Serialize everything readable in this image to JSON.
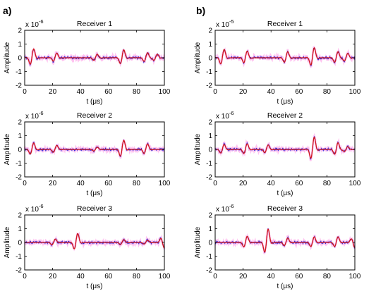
{
  "panel_labels": [
    "a)",
    "b)"
  ],
  "colors": {
    "measured": "#2b2bd6",
    "fit": "#d11a1a",
    "envelope": "#ff77dd",
    "axes": "#000000"
  },
  "chart_data": [
    {
      "type": "line",
      "panel": "a)",
      "title": "Receiver 1",
      "xlabel": "t (μs)",
      "ylabel": "Amplitude",
      "multiplier": "x 10",
      "multiplier_exp": "-6",
      "xlim": [
        0,
        100
      ],
      "ylim": [
        -2,
        2
      ],
      "xticks": [
        0,
        20,
        40,
        60,
        80,
        100
      ],
      "yticks": [
        -2,
        -1,
        0,
        1,
        2
      ],
      "pulses": [
        {
          "t": 5.5,
          "a": 0.8
        },
        {
          "t": 22,
          "a": 0.42
        },
        {
          "t": 51,
          "a": 0.32
        },
        {
          "t": 70,
          "a": 0.72
        },
        {
          "t": 87,
          "a": 0.45
        },
        {
          "t": 94,
          "a": 0.32
        }
      ]
    },
    {
      "type": "line",
      "panel": "b)",
      "title": "Receiver 1",
      "xlabel": "t (μs)",
      "ylabel": "Amplitude",
      "multiplier": "x 10",
      "multiplier_exp": "-5",
      "xlim": [
        0,
        100
      ],
      "ylim": [
        -2,
        2
      ],
      "xticks": [
        0,
        20,
        40,
        60,
        80,
        100
      ],
      "yticks": [
        -2,
        -1,
        0,
        1,
        2
      ],
      "pulses": [
        {
          "t": 5.5,
          "a": 0.75
        },
        {
          "t": 22,
          "a": 0.6
        },
        {
          "t": 51,
          "a": 0.55
        },
        {
          "t": 70,
          "a": 0.9
        },
        {
          "t": 87,
          "a": 0.55
        },
        {
          "t": 94,
          "a": 0.4
        }
      ]
    },
    {
      "type": "line",
      "panel": "a)",
      "title": "Receiver 2",
      "xlabel": "t (μs)",
      "ylabel": "Amplitude",
      "multiplier": "x 10",
      "multiplier_exp": "-6",
      "xlim": [
        0,
        100
      ],
      "ylim": [
        -2,
        2
      ],
      "xticks": [
        0,
        20,
        40,
        60,
        80,
        100
      ],
      "yticks": [
        -2,
        -1,
        0,
        1,
        2
      ],
      "pulses": [
        {
          "t": 5.5,
          "a": 0.58
        },
        {
          "t": 22,
          "a": 0.36
        },
        {
          "t": 51,
          "a": 0.2
        },
        {
          "t": 70,
          "a": 0.82
        },
        {
          "t": 87,
          "a": 0.5
        }
      ]
    },
    {
      "type": "line",
      "panel": "b)",
      "title": "Receiver 2",
      "xlabel": "t (μs)",
      "ylabel": "Amplitude",
      "multiplier": "x 10",
      "multiplier_exp": "-6",
      "xlim": [
        0,
        100
      ],
      "ylim": [
        -2,
        2
      ],
      "xticks": [
        0,
        20,
        40,
        60,
        80,
        100
      ],
      "yticks": [
        -2,
        -1,
        0,
        1,
        2
      ],
      "pulses": [
        {
          "t": 5.5,
          "a": 0.45
        },
        {
          "t": 22,
          "a": 0.5
        },
        {
          "t": 37,
          "a": 0.4
        },
        {
          "t": 70,
          "a": 1.1
        },
        {
          "t": 87,
          "a": 0.6
        },
        {
          "t": 94,
          "a": 0.25
        }
      ]
    },
    {
      "type": "line",
      "panel": "a)",
      "title": "Receiver 3",
      "xlabel": "t (μs)",
      "ylabel": "Amplitude",
      "multiplier": "x 10",
      "multiplier_exp": "-6",
      "xlim": [
        0,
        100
      ],
      "ylim": [
        -2,
        2
      ],
      "xticks": [
        0,
        20,
        40,
        60,
        80,
        100
      ],
      "yticks": [
        -2,
        -1,
        0,
        1,
        2
      ],
      "pulses": [
        {
          "t": 21,
          "a": 0.3
        },
        {
          "t": 37,
          "a": 0.8
        },
        {
          "t": 70,
          "a": 0.25
        },
        {
          "t": 87,
          "a": 0.2
        },
        {
          "t": 99,
          "a": -0.5
        }
      ]
    },
    {
      "type": "line",
      "panel": "b)",
      "title": "Receiver 3",
      "xlabel": "t (μs)",
      "ylabel": "Amplitude",
      "multiplier": "x 10",
      "multiplier_exp": "-6",
      "xlim": [
        0,
        100
      ],
      "ylim": [
        -2,
        2
      ],
      "xticks": [
        0,
        20,
        40,
        60,
        80,
        100
      ],
      "yticks": [
        -2,
        -1,
        0,
        1,
        2
      ],
      "pulses": [
        {
          "t": 22,
          "a": 0.55
        },
        {
          "t": 37,
          "a": 1.2
        },
        {
          "t": 51,
          "a": 0.4
        },
        {
          "t": 70,
          "a": 0.5
        },
        {
          "t": 87,
          "a": 0.5
        },
        {
          "t": 99,
          "a": -0.45
        }
      ]
    }
  ]
}
